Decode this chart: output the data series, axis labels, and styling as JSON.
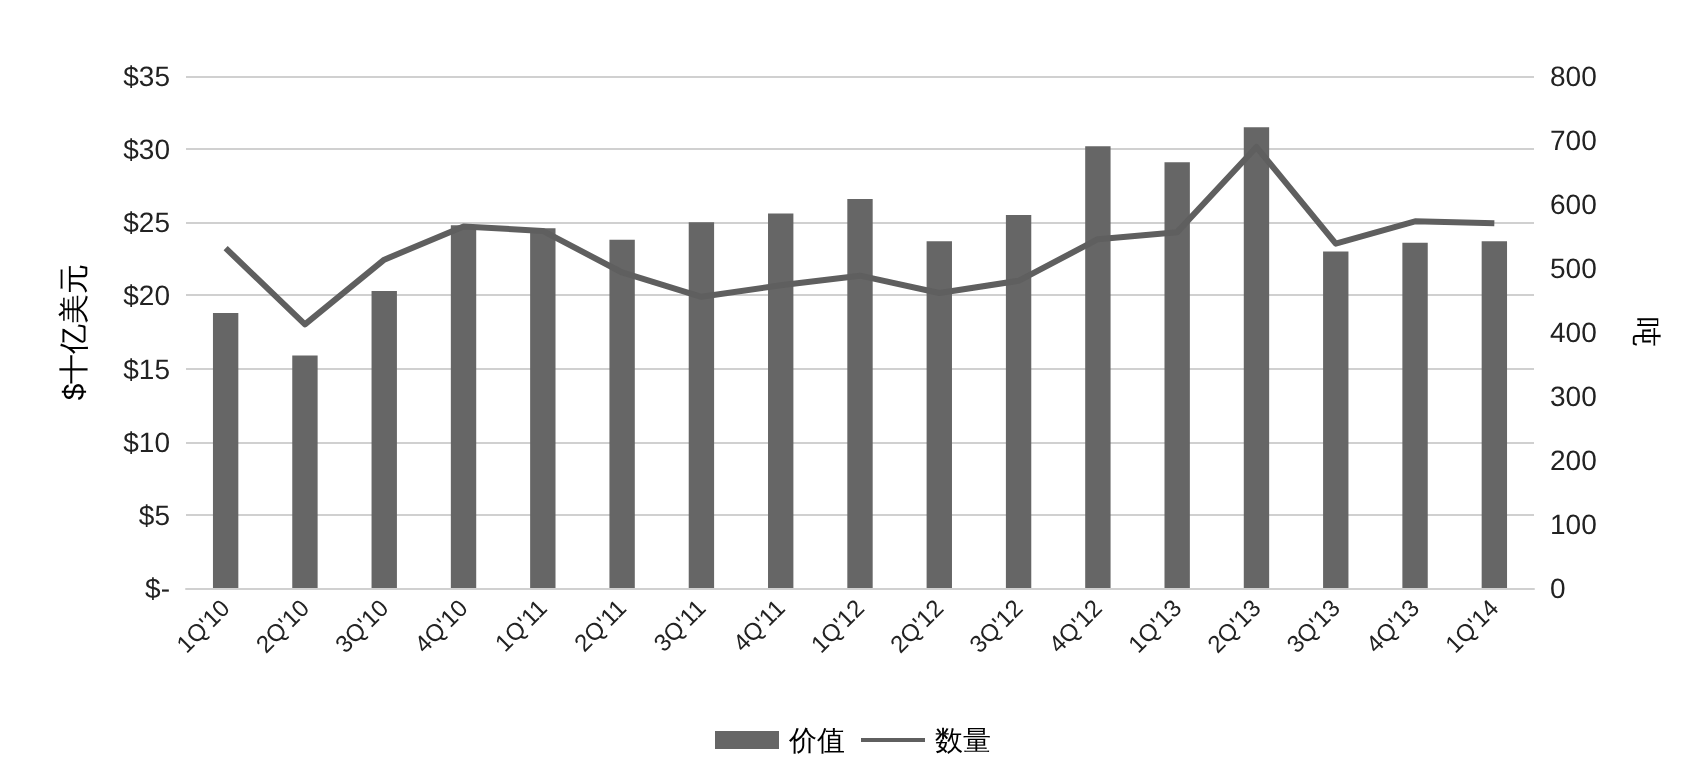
{
  "chart_data": {
    "type": "bar",
    "categories": [
      "1Q'10",
      "2Q'10",
      "3Q'10",
      "4Q'10",
      "1Q'11",
      "2Q'11",
      "3Q'11",
      "4Q'11",
      "1Q'12",
      "2Q'12",
      "3Q'12",
      "4Q'12",
      "1Q'13",
      "2Q'13",
      "3Q'13",
      "4Q'13",
      "1Q'14"
    ],
    "series": [
      {
        "name": "价值",
        "color": "#666666",
        "values": [
          18.8,
          15.9,
          20.3,
          24.8,
          24.6,
          23.8,
          25.0,
          25.6,
          26.6,
          23.7,
          25.5,
          30.2,
          29.1,
          31.5,
          23.0,
          23.6,
          23.7
        ]
      },
      {
        "name": "数量",
        "type": "line",
        "axis": "y2",
        "color": "#5f5f5f",
        "values": [
          531,
          412,
          513,
          565,
          558,
          493,
          455,
          473,
          488,
          461,
          480,
          545,
          556,
          689,
          538,
          573,
          570
        ]
      }
    ],
    "ylabel": "$十亿美元",
    "y2label": "吨",
    "ylim": [
      0,
      35
    ],
    "yticks": [
      {
        "value": 0,
        "label": "$-"
      },
      {
        "value": 5,
        "label": "$5"
      },
      {
        "value": 10,
        "label": "$10"
      },
      {
        "value": 15,
        "label": "$15"
      },
      {
        "value": 20,
        "label": "$20"
      },
      {
        "value": 25,
        "label": "$25"
      },
      {
        "value": 30,
        "label": "$30"
      },
      {
        "value": 35,
        "label": "$35"
      }
    ],
    "y2lim": [
      0,
      800
    ],
    "y2ticks": [
      0,
      100,
      200,
      300,
      400,
      500,
      600,
      700,
      800
    ],
    "grid": "y",
    "legend": "bottom",
    "marker": "none",
    "line_style": "solid"
  }
}
